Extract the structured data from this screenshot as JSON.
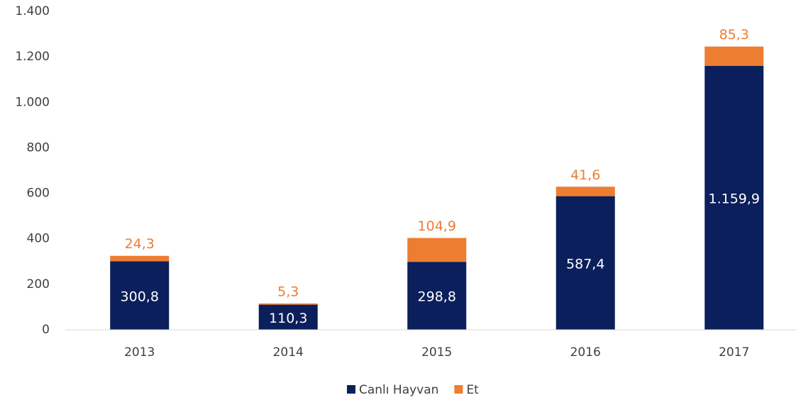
{
  "chart_data": {
    "type": "stacked_bar",
    "categories": [
      "2013",
      "2014",
      "2015",
      "2016",
      "2017"
    ],
    "series": [
      {
        "name": "Canlı Hayvan",
        "color": "#0b1f5c",
        "values": [
          300.8,
          110.3,
          298.8,
          587.4,
          1159.9
        ],
        "value_labels": [
          "300,8",
          "110,3",
          "298,8",
          "587,4",
          "1.159,9"
        ]
      },
      {
        "name": "Et",
        "color": "#ed7d31",
        "values": [
          24.3,
          5.3,
          104.9,
          41.6,
          85.3
        ],
        "value_labels": [
          "24,3",
          "5,3",
          "104,9",
          "41,6",
          "85,3"
        ]
      }
    ],
    "ylim": [
      0,
      1400
    ],
    "yticks": [
      0,
      200,
      400,
      600,
      800,
      {
        "value": 1000,
        "label": "1.000"
      },
      {
        "value": 1200,
        "label": "1.200"
      },
      {
        "value": 1400,
        "label": "1.400"
      }
    ],
    "grid": false,
    "legend": "bottom"
  }
}
